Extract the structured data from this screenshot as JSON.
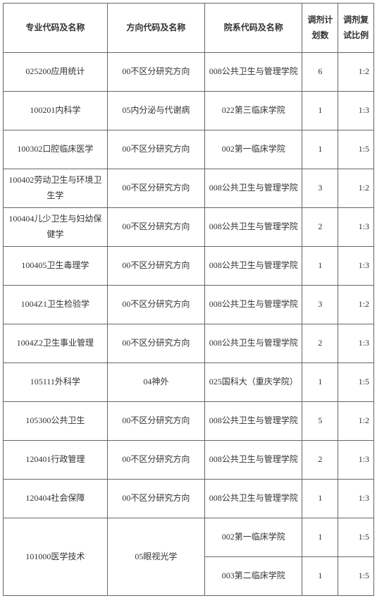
{
  "headers": {
    "major": "专业代码及名称",
    "direction": "方向代码及名称",
    "department": "院系代码及名称",
    "plan": "调剂计划数",
    "ratio": "调剂复试比例"
  },
  "rows": [
    {
      "major": "025200应用统计",
      "direction": "00不区分研究方向",
      "department": "008公共卫生与管理学院",
      "plan": "6",
      "ratio": "1:2"
    },
    {
      "major": "100201内科学",
      "direction": "05内分泌与代谢病",
      "department": "022第三临床学院",
      "plan": "1",
      "ratio": "1:3"
    },
    {
      "major": "100302口腔临床医学",
      "direction": "00不区分研究方向",
      "department": "002第一临床学院",
      "plan": "1",
      "ratio": "1:5"
    },
    {
      "major": "100402劳动卫生与环境卫生学",
      "direction": "00不区分研究方向",
      "department": "008公共卫生与管理学院",
      "plan": "3",
      "ratio": "1:2"
    },
    {
      "major": "100404儿少卫生与妇幼保健学",
      "direction": "00不区分研究方向",
      "department": "008公共卫生与管理学院",
      "plan": "2",
      "ratio": "1:3"
    },
    {
      "major": "100405卫生毒理学",
      "direction": "00不区分研究方向",
      "department": "008公共卫生与管理学院",
      "plan": "1",
      "ratio": "1:3"
    },
    {
      "major": "1004Z1卫生检验学",
      "direction": "00不区分研究方向",
      "department": "008公共卫生与管理学院",
      "plan": "3",
      "ratio": "1:2"
    },
    {
      "major": "1004Z2卫生事业管理",
      "direction": "00不区分研究方向",
      "department": "008公共卫生与管理学院",
      "plan": "2",
      "ratio": "1:3"
    },
    {
      "major": "105111外科学",
      "direction": "04神外",
      "department": "025国科大（重庆学院）",
      "plan": "1",
      "ratio": "1:5"
    },
    {
      "major": "105300公共卫生",
      "direction": "00不区分研究方向",
      "department": "008公共卫生与管理学院",
      "plan": "5",
      "ratio": "1:2"
    },
    {
      "major": "120401行政管理",
      "direction": "00不区分研究方向",
      "department": "008公共卫生与管理学院",
      "plan": "2",
      "ratio": "1:3"
    },
    {
      "major": "120404社会保障",
      "direction": "00不区分研究方向",
      "department": "008公共卫生与管理学院",
      "plan": "1",
      "ratio": "1:3"
    }
  ],
  "mergedRow": {
    "major": "101000医学技术",
    "direction": "05眼视光学",
    "subs": [
      {
        "department": "002第一临床学院",
        "plan": "1",
        "ratio": "1:5"
      },
      {
        "department": "003第二临床学院",
        "plan": "1",
        "ratio": "1:5"
      }
    ]
  }
}
